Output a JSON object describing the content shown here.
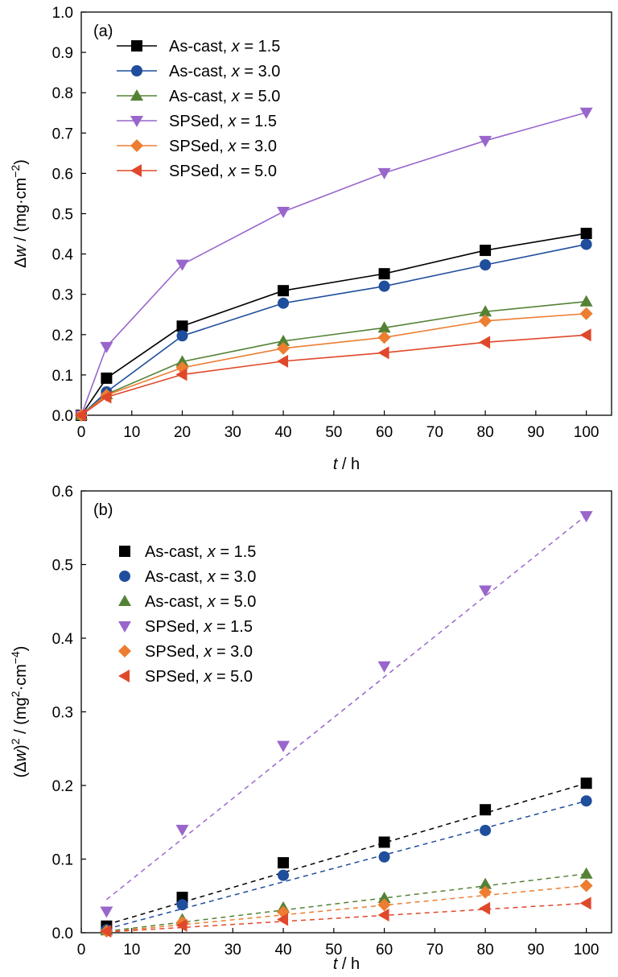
{
  "chart_data": [
    {
      "type": "line",
      "panel_label": "(a)",
      "xlabel": {
        "italic": "t",
        "rest": " / h"
      },
      "ylabel": {
        "prefix": "Δ",
        "italic": "w",
        "rest": " / (mg·cm",
        "sup": "−2",
        "close": ")"
      },
      "xlim": [
        0,
        105
      ],
      "ylim": [
        0,
        1.0
      ],
      "xticks": [
        "0",
        "10",
        "20",
        "30",
        "40",
        "50",
        "60",
        "70",
        "80",
        "90",
        "100"
      ],
      "yticks": [
        "0.0",
        "0.1",
        "0.2",
        "0.3",
        "0.4",
        "0.5",
        "0.6",
        "0.7",
        "0.8",
        "0.9",
        "1.0"
      ],
      "grid": false,
      "legend_position": "top-left",
      "x": [
        0,
        5,
        20,
        40,
        60,
        80,
        100
      ],
      "series": [
        {
          "name_prefix": "As-cast, ",
          "name_var": "x",
          "name_value": " = 1.5",
          "marker": "square",
          "color": "#000000",
          "values": [
            0,
            0.092,
            0.221,
            0.309,
            0.351,
            0.409,
            0.451
          ]
        },
        {
          "name_prefix": "As-cast, ",
          "name_var": "x",
          "name_value": " = 3.0",
          "marker": "circle",
          "color": "#1f4e9c",
          "values": [
            0,
            0.058,
            0.197,
            0.278,
            0.32,
            0.373,
            0.424
          ]
        },
        {
          "name_prefix": "As-cast, ",
          "name_var": "x",
          "name_value": " = 5.0",
          "marker": "triangle-up",
          "color": "#548235",
          "values": [
            0,
            0.052,
            0.133,
            0.184,
            0.217,
            0.257,
            0.282
          ]
        },
        {
          "name_prefix": "SPSed, ",
          "name_var": "x",
          "name_value": " = 1.5",
          "marker": "triangle-down",
          "color": "#9966cc",
          "values": [
            0,
            0.17,
            0.374,
            0.505,
            0.601,
            0.681,
            0.751
          ]
        },
        {
          "name_prefix": "SPSed, ",
          "name_var": "x",
          "name_value": " = 3.0",
          "marker": "diamond",
          "color": "#ed7d31",
          "values": [
            0,
            0.05,
            0.118,
            0.166,
            0.193,
            0.234,
            0.252
          ]
        },
        {
          "name_prefix": "SPSed, ",
          "name_var": "x",
          "name_value": " = 5.0",
          "marker": "triangle-left",
          "color": "#e0482b",
          "values": [
            0,
            0.045,
            0.101,
            0.134,
            0.155,
            0.181,
            0.199
          ]
        }
      ]
    },
    {
      "type": "scatter",
      "panel_label": "(b)",
      "xlabel": {
        "italic": "t",
        "rest": " / h"
      },
      "ylabel": {
        "prefix": "(Δ",
        "italic": "w",
        "rest": ")",
        "sup": "2",
        "rest2": " / (mg",
        "sup2": "2",
        "rest3": "·cm",
        "sup3": "−4",
        "close": ")"
      },
      "xlim": [
        0,
        105
      ],
      "ylim": [
        0,
        0.6
      ],
      "xticks": [
        "0",
        "10",
        "20",
        "30",
        "40",
        "50",
        "60",
        "70",
        "80",
        "90",
        "100"
      ],
      "yticks": [
        "0.0",
        "0.1",
        "0.2",
        "0.3",
        "0.4",
        "0.5",
        "0.6"
      ],
      "grid": false,
      "legend_position": "top-left",
      "fit_lines": "dashed linear fits",
      "x": [
        5,
        20,
        40,
        60,
        80,
        100
      ],
      "series": [
        {
          "name_prefix": "As-cast, ",
          "name_var": "x",
          "name_value": " = 1.5",
          "marker": "square",
          "color": "#000000",
          "values": [
            0.009,
            0.048,
            0.095,
            0.123,
            0.167,
            0.203
          ],
          "fit": [
            0.011,
            0.203
          ]
        },
        {
          "name_prefix": "As-cast, ",
          "name_var": "x",
          "name_value": " = 3.0",
          "marker": "circle",
          "color": "#1f4e9c",
          "values": [
            0.004,
            0.038,
            0.078,
            0.103,
            0.139,
            0.179
          ],
          "fit": [
            0.005,
            0.179
          ]
        },
        {
          "name_prefix": "As-cast, ",
          "name_var": "x",
          "name_value": " = 5.0",
          "marker": "triangle-up",
          "color": "#548235",
          "values": [
            0.003,
            0.018,
            0.034,
            0.047,
            0.066,
            0.08
          ],
          "fit": [
            0.002,
            0.08
          ]
        },
        {
          "name_prefix": "SPSed, ",
          "name_var": "x",
          "name_value": " = 1.5",
          "marker": "triangle-down",
          "color": "#9966cc",
          "values": [
            0.029,
            0.14,
            0.254,
            0.362,
            0.465,
            0.566
          ],
          "fit": [
            0.045,
            0.567
          ]
        },
        {
          "name_prefix": "SPSed, ",
          "name_var": "x",
          "name_value": " = 3.0",
          "marker": "diamond",
          "color": "#ed7d31",
          "values": [
            0.002,
            0.014,
            0.028,
            0.038,
            0.055,
            0.064
          ],
          "fit": [
            0.001,
            0.064
          ]
        },
        {
          "name_prefix": "SPSed, ",
          "name_var": "x",
          "name_value": " = 5.0",
          "marker": "triangle-left",
          "color": "#e0482b",
          "values": [
            0.002,
            0.01,
            0.018,
            0.024,
            0.033,
            0.04
          ],
          "fit": [
            0.001,
            0.04
          ]
        }
      ]
    }
  ]
}
